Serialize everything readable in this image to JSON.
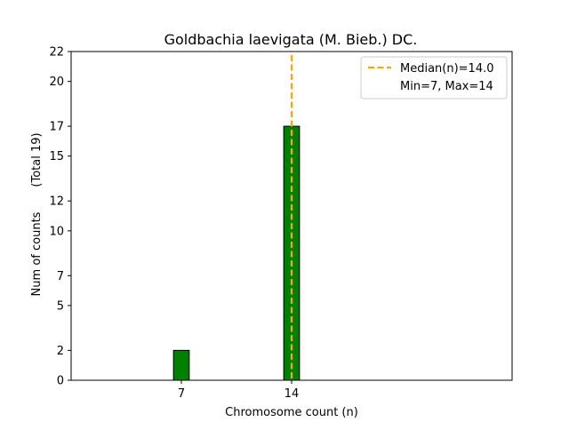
{
  "chart_data": {
    "type": "bar",
    "title": "Goldbachia laevigata (M. Bieb.) DC.",
    "xlabel": "Chromosome count (n)",
    "ylabel_main": "Num of counts",
    "ylabel_total": "(Total 19)",
    "categories": [
      7,
      14
    ],
    "values": [
      2,
      17
    ],
    "bar_width": 1,
    "xlim": [
      0,
      28
    ],
    "ylim": [
      0,
      22
    ],
    "x_ticks": [
      7,
      14
    ],
    "y_ticks": [
      0,
      2,
      5,
      7,
      10,
      12,
      15,
      17,
      20,
      22
    ],
    "median": 14.0,
    "min": 7,
    "max": 14,
    "legend": {
      "position": "top-right",
      "entries": [
        {
          "label": "Median(n)=14.0",
          "style": "dashed-line"
        },
        {
          "label": "Min=7, Max=14",
          "style": "none"
        }
      ]
    },
    "colors": {
      "bar_fill": "#008000",
      "bar_edge": "#000000",
      "median_line": "#ffa500",
      "axes": "#000000"
    }
  }
}
